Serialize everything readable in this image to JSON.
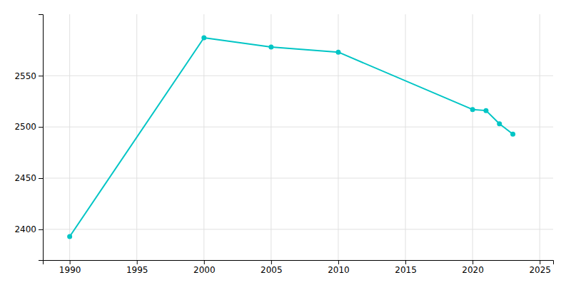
{
  "chart_data": {
    "type": "line",
    "x": [
      1990,
      2000,
      2005,
      2010,
      2020,
      2021,
      2022,
      2023
    ],
    "values": [
      2393,
      2587,
      2578,
      2573,
      2517,
      2516,
      2503,
      2493
    ],
    "color": "#00C5C5",
    "marker": "circle",
    "xlim": [
      1988,
      2026
    ],
    "ylim": [
      2370,
      2610
    ],
    "xticks": [
      1990,
      1995,
      2000,
      2005,
      2010,
      2015,
      2020,
      2025
    ],
    "yticks": [
      2400,
      2450,
      2500,
      2550
    ],
    "grid": true
  }
}
